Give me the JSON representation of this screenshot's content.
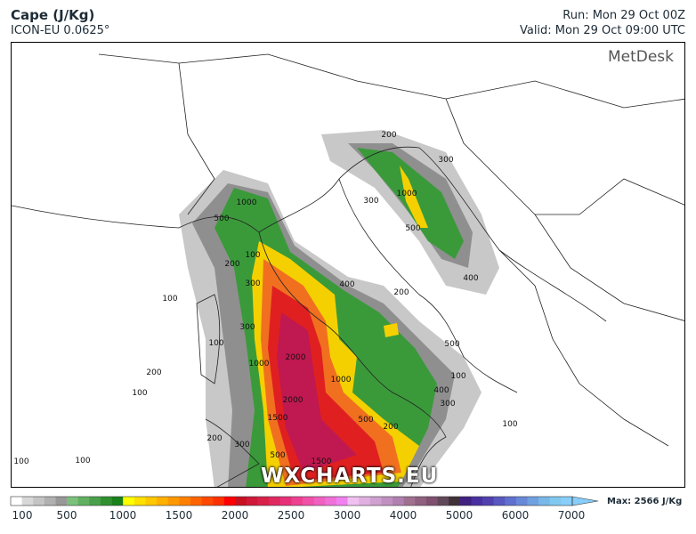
{
  "header": {
    "title": "Cape (J/Kg)",
    "model": "ICON-EU 0.0625°",
    "run": "Run: Mon 29 Oct 00Z",
    "valid": "Valid: Mon 29 Oct 09:00 UTC"
  },
  "logo": "MetDesk",
  "watermark": "WXCHARTS.EU",
  "colorbar": {
    "ticks": [
      "100",
      "500",
      "1000",
      "1500",
      "2000",
      "2500",
      "3000",
      "4000",
      "5000",
      "6000",
      "7000"
    ],
    "max_label": "Max: 2566 J/Kg"
  },
  "contour_labels": [
    {
      "text": "200"
    },
    {
      "text": "300"
    },
    {
      "text": "1000"
    },
    {
      "text": "300"
    },
    {
      "text": "1000"
    },
    {
      "text": "500"
    },
    {
      "text": "500"
    },
    {
      "text": "400"
    },
    {
      "text": "400"
    },
    {
      "text": "200"
    },
    {
      "text": "100"
    },
    {
      "text": "300"
    },
    {
      "text": "500"
    },
    {
      "text": "100"
    },
    {
      "text": "2000"
    },
    {
      "text": "1000"
    },
    {
      "text": "200"
    },
    {
      "text": "1000"
    },
    {
      "text": "100"
    },
    {
      "text": "400"
    },
    {
      "text": "100"
    },
    {
      "text": "2000"
    },
    {
      "text": "300"
    },
    {
      "text": "1500"
    },
    {
      "text": "500"
    },
    {
      "text": "200"
    },
    {
      "text": "100"
    },
    {
      "text": "200"
    },
    {
      "text": "300"
    },
    {
      "text": "500"
    },
    {
      "text": "1500"
    },
    {
      "text": "100"
    },
    {
      "text": "100"
    },
    {
      "text": "200"
    },
    {
      "text": "300"
    },
    {
      "text": "100"
    }
  ]
}
